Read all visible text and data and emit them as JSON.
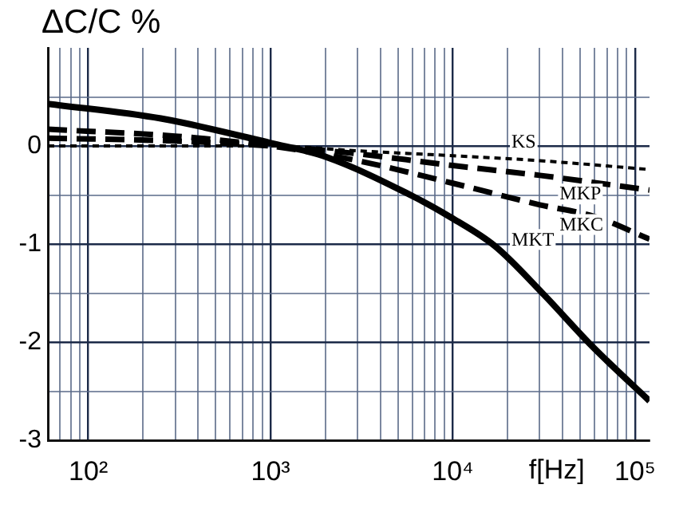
{
  "chart_data": {
    "type": "line",
    "xlabel": "f[Hz]",
    "ylabel": "ΔC/C %",
    "log": "x",
    "grid": true,
    "legend": false,
    "marker": "none",
    "xlim": [
      60,
      120000
    ],
    "ylim": [
      -3,
      1
    ],
    "xticks": [
      {
        "value": 60,
        "label": null
      },
      {
        "value": 70,
        "label": null
      },
      {
        "value": 80,
        "label": null
      },
      {
        "value": 90,
        "label": null
      },
      {
        "value": 100,
        "label": "10²"
      },
      {
        "value": 200,
        "label": null
      },
      {
        "value": 300,
        "label": null
      },
      {
        "value": 400,
        "label": null
      },
      {
        "value": 500,
        "label": null
      },
      {
        "value": 600,
        "label": null
      },
      {
        "value": 700,
        "label": null
      },
      {
        "value": 800,
        "label": null
      },
      {
        "value": 900,
        "label": null
      },
      {
        "value": 1000,
        "label": "10³"
      },
      {
        "value": 2000,
        "label": null
      },
      {
        "value": 3000,
        "label": null
      },
      {
        "value": 4000,
        "label": null
      },
      {
        "value": 5000,
        "label": null
      },
      {
        "value": 6000,
        "label": null
      },
      {
        "value": 7000,
        "label": null
      },
      {
        "value": 8000,
        "label": null
      },
      {
        "value": 9000,
        "label": null
      },
      {
        "value": 10000,
        "label": "10⁴"
      },
      {
        "value": 20000,
        "label": null
      },
      {
        "value": 30000,
        "label": null
      },
      {
        "value": 40000,
        "label": null
      },
      {
        "value": 50000,
        "label": null
      },
      {
        "value": 60000,
        "label": null
      },
      {
        "value": 70000,
        "label": null
      },
      {
        "value": 80000,
        "label": null
      },
      {
        "value": 90000,
        "label": null
      },
      {
        "value": 100000,
        "label": "10⁵"
      }
    ],
    "yticks": [
      -3,
      {
        "value": -2.5,
        "label": null
      },
      -2,
      {
        "value": -1.5,
        "label": null
      },
      -1,
      {
        "value": -0.5,
        "label": null
      },
      0,
      {
        "value": 0.5,
        "label": null
      }
    ],
    "series": [
      {
        "name": "KS",
        "color": "#000000",
        "line_style": "dotted",
        "x": [
          60,
          300,
          1000,
          3000,
          10000,
          30000,
          120000
        ],
        "values": [
          0,
          0,
          0,
          -0.05,
          -0.1,
          -0.15,
          -0.24
        ]
      },
      {
        "name": "MKP",
        "color": "#000000",
        "line_style": "dashed",
        "x": [
          60,
          300,
          1000,
          3000,
          10000,
          30000,
          120000
        ],
        "values": [
          0.08,
          0.05,
          0,
          -0.08,
          -0.2,
          -0.3,
          -0.45
        ]
      },
      {
        "name": "MKC",
        "color": "#000000",
        "line_style": "dashed",
        "x": [
          60,
          300,
          1000,
          3000,
          10000,
          30000,
          60000,
          120000
        ],
        "values": [
          0.17,
          0.1,
          0,
          -0.15,
          -0.38,
          -0.6,
          -0.72,
          -0.95
        ]
      },
      {
        "name": "MKT",
        "color": "#000000",
        "line_style": "solid",
        "x": [
          60,
          250,
          1000,
          2000,
          6000,
          10000,
          17000,
          31000,
          58000,
          120000
        ],
        "values": [
          0.43,
          0.28,
          0.03,
          -0.11,
          -0.51,
          -0.74,
          -1.02,
          -1.5,
          -2.04,
          -2.6
        ]
      }
    ]
  }
}
